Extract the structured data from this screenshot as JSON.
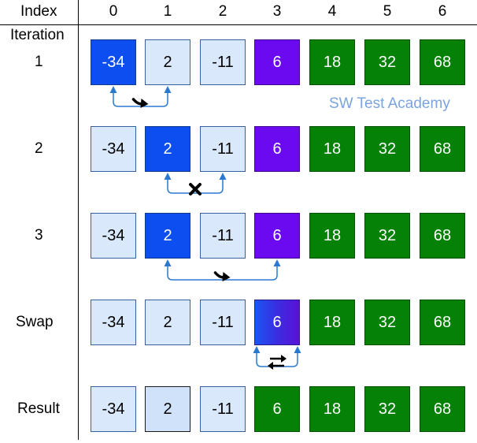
{
  "header": {
    "index_label": "Index",
    "iteration_label": "Iteration"
  },
  "indices": [
    "0",
    "1",
    "2",
    "3",
    "4",
    "5",
    "6"
  ],
  "rows": [
    {
      "label": "1",
      "cells": [
        {
          "value": "-34",
          "style": "blue"
        },
        {
          "value": "2",
          "style": "light"
        },
        {
          "value": "-11",
          "style": "light"
        },
        {
          "value": "6",
          "style": "purple"
        },
        {
          "value": "18",
          "style": "green"
        },
        {
          "value": "32",
          "style": "green"
        },
        {
          "value": "68",
          "style": "green"
        }
      ]
    },
    {
      "label": "2",
      "cells": [
        {
          "value": "-34",
          "style": "light"
        },
        {
          "value": "2",
          "style": "blue"
        },
        {
          "value": "-11",
          "style": "light"
        },
        {
          "value": "6",
          "style": "purple"
        },
        {
          "value": "18",
          "style": "green"
        },
        {
          "value": "32",
          "style": "green"
        },
        {
          "value": "68",
          "style": "green"
        }
      ]
    },
    {
      "label": "3",
      "cells": [
        {
          "value": "-34",
          "style": "light"
        },
        {
          "value": "2",
          "style": "blue"
        },
        {
          "value": "-11",
          "style": "light"
        },
        {
          "value": "6",
          "style": "purple"
        },
        {
          "value": "18",
          "style": "green"
        },
        {
          "value": "32",
          "style": "green"
        },
        {
          "value": "68",
          "style": "green"
        }
      ]
    },
    {
      "label": "Swap",
      "cells": [
        {
          "value": "-34",
          "style": "light"
        },
        {
          "value": "2",
          "style": "light"
        },
        {
          "value": "-11",
          "style": "light"
        },
        {
          "value": "6",
          "style": "grad"
        },
        {
          "value": "18",
          "style": "green"
        },
        {
          "value": "32",
          "style": "green"
        },
        {
          "value": "68",
          "style": "green"
        }
      ]
    },
    {
      "label": "Result",
      "cells": [
        {
          "value": "-34",
          "style": "light"
        },
        {
          "value": "2",
          "style": "lightb"
        },
        {
          "value": "-11",
          "style": "light"
        },
        {
          "value": "6",
          "style": "green"
        },
        {
          "value": "18",
          "style": "green"
        },
        {
          "value": "32",
          "style": "green"
        },
        {
          "value": "68",
          "style": "green"
        }
      ]
    }
  ],
  "comparisons": [
    {
      "row": 0,
      "from": 0,
      "to": 1,
      "symbol": "next-arrow-icon"
    },
    {
      "row": 1,
      "from": 1,
      "to": 2,
      "symbol": "cross-icon"
    },
    {
      "row": 2,
      "from": 1,
      "to": 3,
      "symbol": "next-arrow-icon"
    },
    {
      "row": 3,
      "from": 3,
      "to": 3,
      "symbol": "swap-icon"
    }
  ],
  "watermark": "SW Test Academy",
  "colors": {
    "light": "#dae8fc",
    "blue": "#0c4ef0",
    "purple": "#6b0af0",
    "green": "#058205",
    "connector": "#2a78d0",
    "watermark": "#7aa4e0"
  }
}
